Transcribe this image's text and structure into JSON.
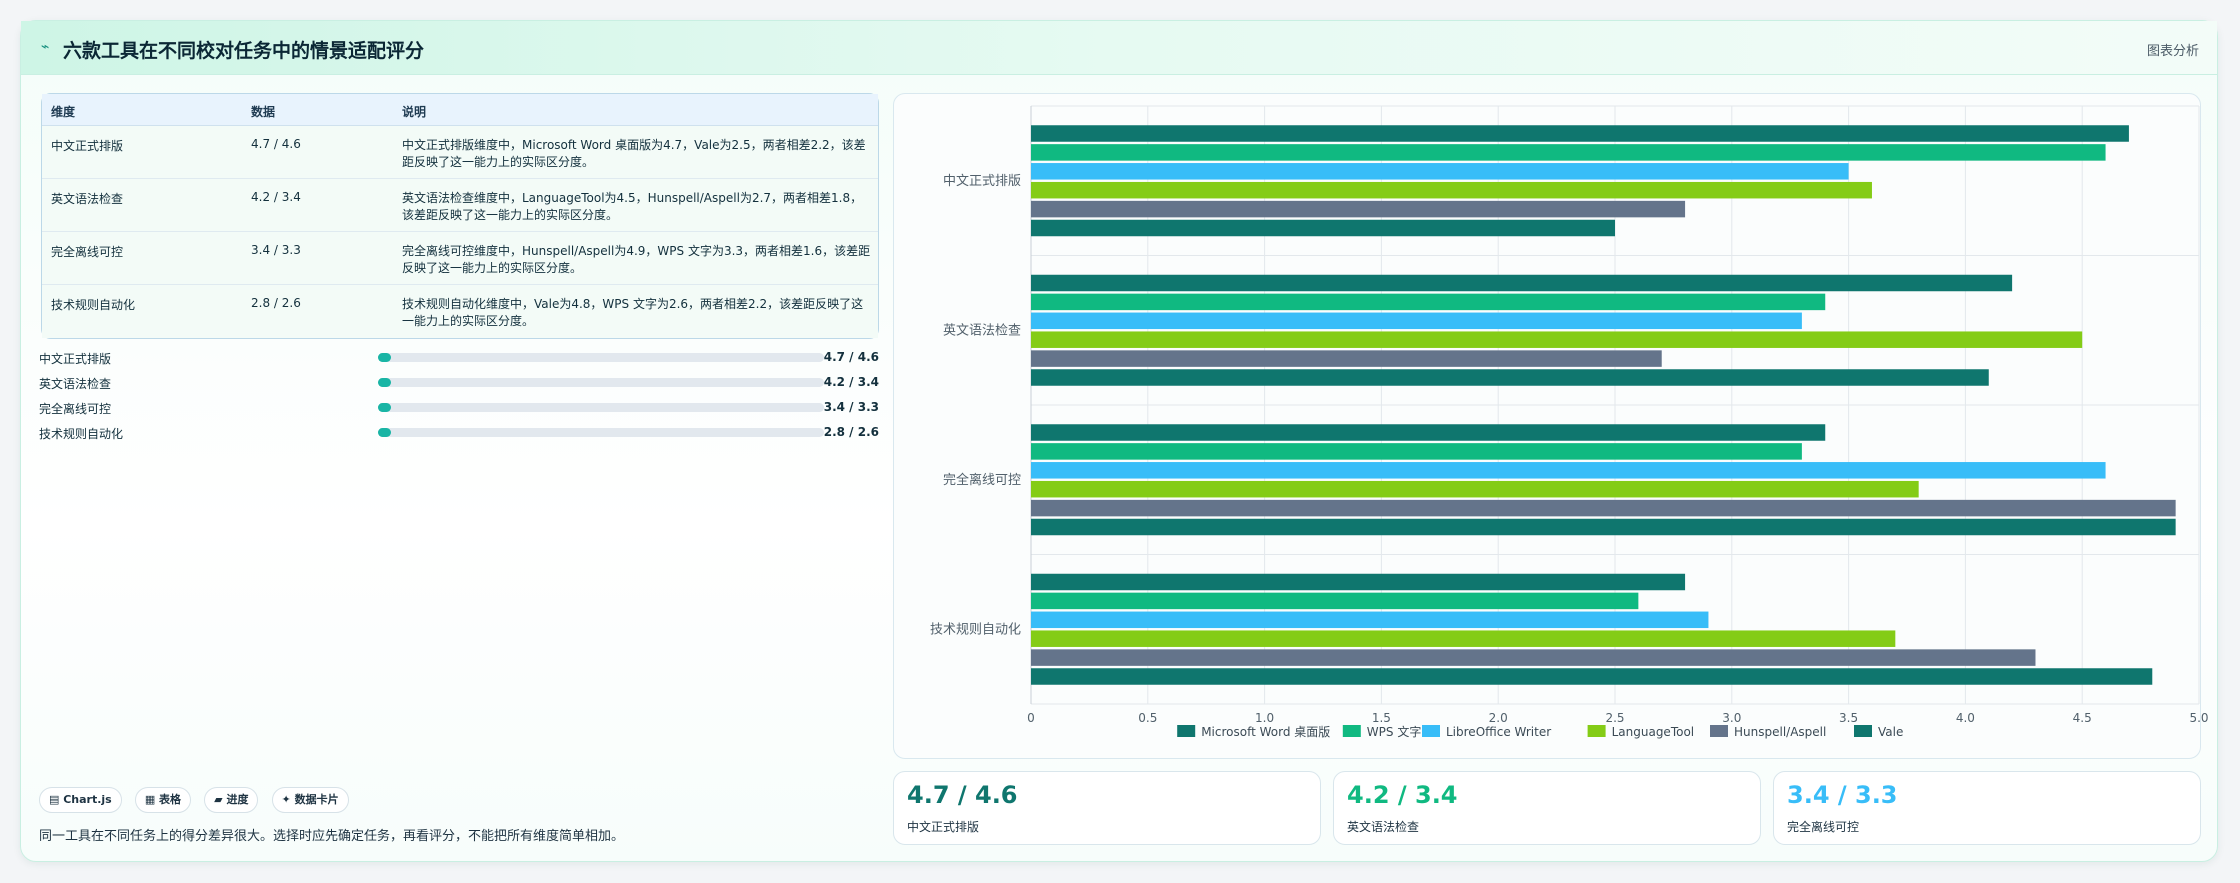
{
  "header": {
    "logo_glyph": "⌁",
    "title": "六款工具在不同校对任务中的情景适配评分",
    "tag": "图表分析"
  },
  "table": {
    "headers": [
      "维度",
      "数据",
      "说明"
    ],
    "rows": [
      {
        "dim": "中文正式排版",
        "data": "4.7 / 4.6",
        "desc": "中文正式排版维度中，Microsoft Word 桌面版为4.7，Vale为2.5，两者相差2.2，该差距反映了这一能力上的实际区分度。"
      },
      {
        "dim": "英文语法检查",
        "data": "4.2 / 3.4",
        "desc": "英文语法检查维度中，LanguageTool为4.5，Hunspell/Aspell为2.7，两者相差1.8，该差距反映了这一能力上的实际区分度。"
      },
      {
        "dim": "完全离线可控",
        "data": "3.4 / 3.3",
        "desc": "完全离线可控维度中，Hunspell/Aspell为4.9，WPS 文字为3.3，两者相差1.6，该差距反映了这一能力上的实际区分度。"
      },
      {
        "dim": "技术规则自动化",
        "data": "2.8 / 2.6",
        "desc": "技术规则自动化维度中，Vale为4.8，WPS 文字为2.6，两者相差2.2，该差距反映了这一能力上的实际区分度。"
      }
    ]
  },
  "progress": [
    {
      "label": "中文正式排版",
      "value": "4.7 / 4.6",
      "fill": 0.03
    },
    {
      "label": "英文语法检查",
      "value": "4.2 / 3.4",
      "fill": 0.03
    },
    {
      "label": "完全离线可控",
      "value": "3.4 / 3.3",
      "fill": 0.03
    },
    {
      "label": "技术规则自动化",
      "value": "2.8 / 2.6",
      "fill": 0.03
    }
  ],
  "chips": [
    "▤ Chart.js",
    "▦ 表格",
    "▰ 进度",
    "✦ 数据卡片"
  ],
  "note": "同一工具在不同任务上的得分差异很大。选择时应先确定任务，再看评分，不能把所有维度简单相加。",
  "stats": [
    {
      "value": "4.7 / 4.6",
      "label": "中文正式排版",
      "color": "#0f766e"
    },
    {
      "value": "4.2 / 3.4",
      "label": "英文语法检查",
      "color": "#10b981"
    },
    {
      "value": "3.4 / 3.3",
      "label": "完全离线可控",
      "color": "#38bdf8"
    }
  ],
  "chart_data": {
    "type": "bar",
    "orientation": "horizontal",
    "categories": [
      "中文正式排版",
      "英文语法检查",
      "完全离线可控",
      "技术规则自动化"
    ],
    "series": [
      {
        "name": "Microsoft Word 桌面版",
        "color": "#0f766e",
        "values": [
          4.7,
          4.2,
          3.4,
          2.8
        ]
      },
      {
        "name": "WPS 文字",
        "color": "#10b981",
        "values": [
          4.6,
          3.4,
          3.3,
          2.6
        ]
      },
      {
        "name": "LibreOffice Writer",
        "color": "#38bdf8",
        "values": [
          3.5,
          3.3,
          4.6,
          2.9
        ]
      },
      {
        "name": "LanguageTool",
        "color": "#84cc16",
        "values": [
          3.6,
          4.5,
          3.8,
          3.7
        ]
      },
      {
        "name": "Hunspell/Aspell",
        "color": "#64748b",
        "values": [
          2.8,
          2.7,
          4.9,
          4.3
        ]
      },
      {
        "name": "Vale",
        "color": "#0f766e",
        "values": [
          2.5,
          4.1,
          4.9,
          4.8
        ]
      }
    ],
    "xlim": [
      0,
      5
    ],
    "xticks": [
      "0",
      "0.5",
      "1.0",
      "1.5",
      "2.0",
      "2.5",
      "3.0",
      "3.5",
      "4.0",
      "4.5",
      "5.0"
    ],
    "grid": true,
    "legend": "bottom"
  }
}
